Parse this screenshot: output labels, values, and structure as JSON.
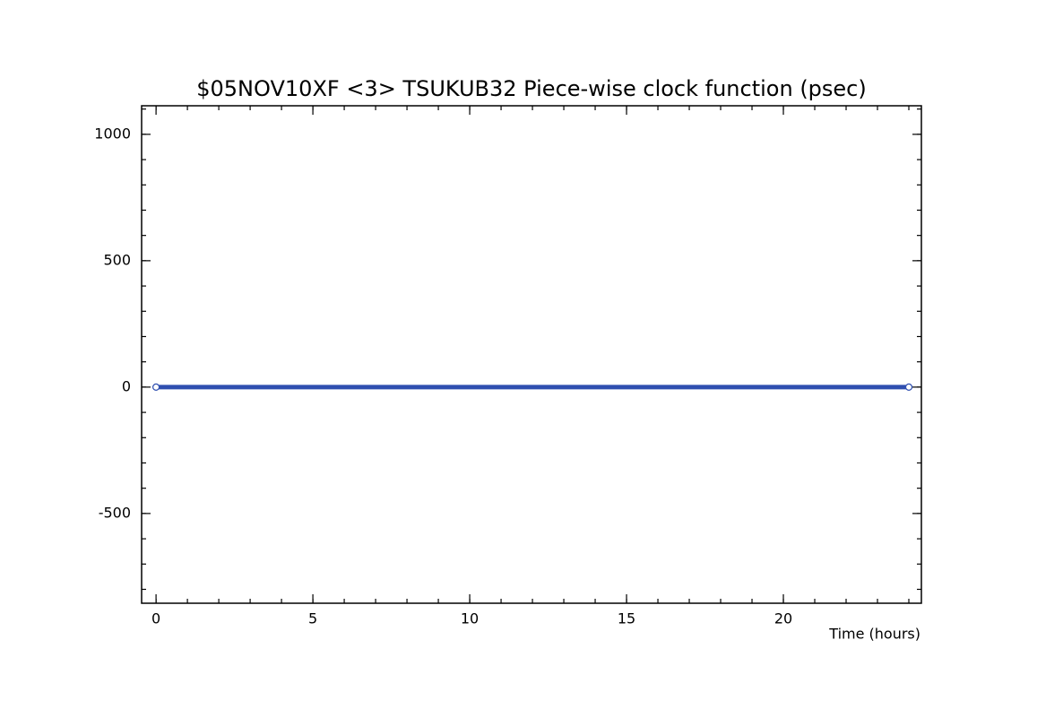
{
  "chart_data": {
    "type": "line",
    "title": "$05NOV10XF <3>  TSUKUB32  Piece-wise clock function (psec)",
    "x_label": "Time (hours)",
    "x": [
      0,
      24
    ],
    "series": [
      {
        "color": "#2f4fb0",
        "values": [
          0,
          0
        ]
      }
    ],
    "xlim": [
      -0.46,
      24.4
    ],
    "ylim": [
      -855,
      1113
    ],
    "xticks": [
      0,
      5,
      10,
      15,
      20
    ],
    "yticks": [
      -500,
      0,
      500,
      1000
    ]
  }
}
